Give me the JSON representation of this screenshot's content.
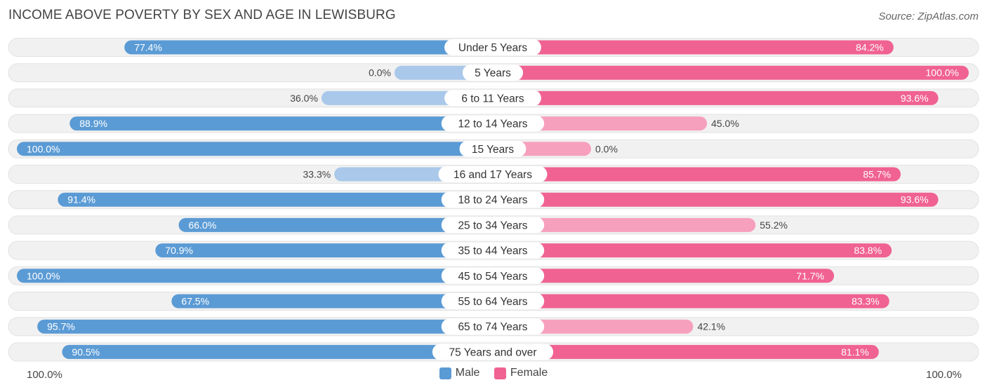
{
  "title": "INCOME ABOVE POVERTY BY SEX AND AGE IN LEWISBURG",
  "source": "Source: ZipAtlas.com",
  "axis": {
    "left_label": "100.0%",
    "right_label": "100.0%"
  },
  "colors": {
    "male_strong": "#5b9bd5",
    "male_light": "#a9c8ea",
    "female_strong": "#f06292",
    "female_light": "#f7a0bd",
    "track": "#f1f1f1"
  },
  "chart_data": {
    "type": "bar",
    "orientation": "horizontal-diverging",
    "title": "INCOME ABOVE POVERTY BY SEX AND AGE IN LEWISBURG",
    "categories": [
      "Under 5 Years",
      "5 Years",
      "6 to 11 Years",
      "12 to 14 Years",
      "15 Years",
      "16 and 17 Years",
      "18 to 24 Years",
      "25 to 34 Years",
      "35 to 44 Years",
      "45 to 54 Years",
      "55 to 64 Years",
      "65 to 74 Years",
      "75 Years and over"
    ],
    "series": [
      {
        "name": "Male",
        "values": [
          77.4,
          0.0,
          36.0,
          88.9,
          100.0,
          33.3,
          91.4,
          66.0,
          70.9,
          100.0,
          67.5,
          95.7,
          90.5
        ],
        "labels": [
          "77.4%",
          "0.0%",
          "36.0%",
          "88.9%",
          "100.0%",
          "33.3%",
          "91.4%",
          "66.0%",
          "70.9%",
          "100.0%",
          "67.5%",
          "95.7%",
          "90.5%"
        ]
      },
      {
        "name": "Female",
        "values": [
          84.2,
          100.0,
          93.6,
          45.0,
          0.0,
          85.7,
          93.6,
          55.2,
          83.8,
          71.7,
          83.3,
          42.1,
          81.1
        ],
        "labels": [
          "84.2%",
          "100.0%",
          "93.6%",
          "45.0%",
          "0.0%",
          "85.7%",
          "93.6%",
          "55.2%",
          "83.8%",
          "71.7%",
          "83.3%",
          "42.1%",
          "81.1%"
        ]
      }
    ],
    "xlim": [
      0,
      100
    ],
    "legend": [
      "Male",
      "Female"
    ],
    "legend_position": "bottom-center"
  }
}
